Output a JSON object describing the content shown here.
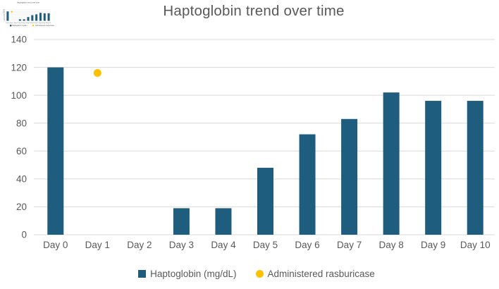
{
  "title": "Haptoglobin trend over time",
  "chart_data": {
    "type": "bar",
    "title": "Haptoglobin trend over time",
    "categories": [
      "Day 0",
      "Day 1",
      "Day 2",
      "Day 3",
      "Day 4",
      "Day 5",
      "Day 6",
      "Day 7",
      "Day 8",
      "Day 9",
      "Day 10"
    ],
    "series": [
      {
        "name": "Haptoglobin (mg/dL)",
        "type": "bar",
        "color": "#1F5D7E",
        "values": [
          120,
          0,
          0,
          19,
          19,
          48,
          72,
          83,
          102,
          96,
          96
        ]
      },
      {
        "name": "Administered rasburicase",
        "type": "point",
        "color": "#FFC000",
        "points": [
          {
            "category": "Day 1",
            "value": 116
          }
        ]
      }
    ],
    "xlabel": "",
    "ylabel": "",
    "ylim": [
      0,
      140
    ],
    "yticks": [
      0,
      20,
      40,
      60,
      80,
      100,
      120,
      140
    ],
    "grid": true,
    "legend_position": "bottom"
  },
  "theme": {
    "gridline_color": "#D9D9D9",
    "axis_text_color": "#595959",
    "title_color": "#595959",
    "background": "#FFFFFF"
  },
  "thumbnail": {
    "description": "miniature duplicate of the same chart shown in the top-left corner"
  }
}
